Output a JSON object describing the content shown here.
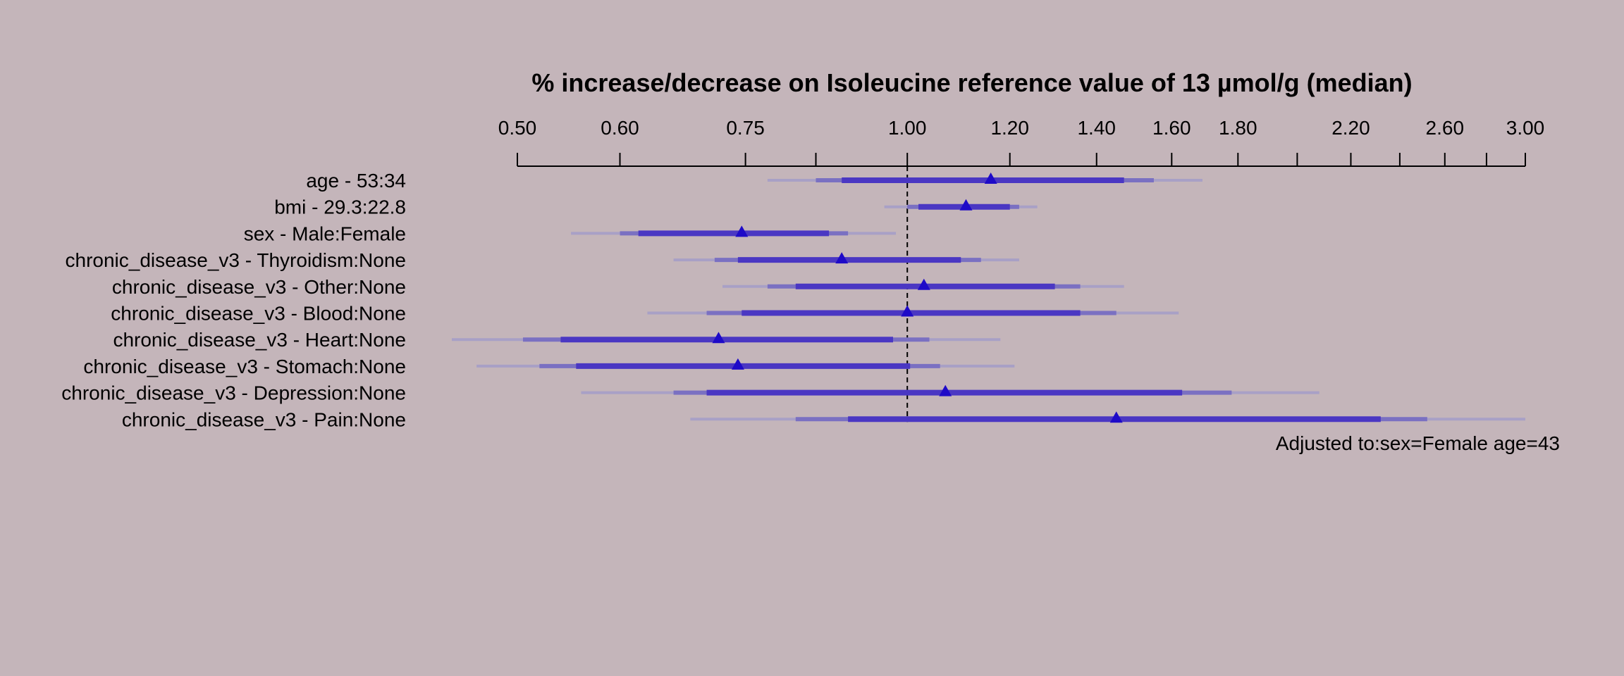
{
  "colors": {
    "background": "#c4b5ba",
    "ci_outer": "#a8a0c6",
    "ci_mid": "#7a70c2",
    "ci_inner": "#4a37c3",
    "point": "#1e0ac8",
    "axis": "#000000"
  },
  "chart_data": {
    "type": "forest",
    "title": "% increase/decrease on Isoleucine reference value of 13 µmol/g (median)",
    "x_scale": "log",
    "xlim": [
      0.5,
      3.0
    ],
    "reference_line": 1.0,
    "ticks": [
      0.5,
      0.6,
      0.75,
      0.85,
      1.0,
      1.2,
      1.4,
      1.6,
      1.8,
      2.0,
      2.2,
      2.4,
      2.6,
      2.8,
      3.0
    ],
    "tick_labels": [
      {
        "value": 0.5,
        "label": "0.50"
      },
      {
        "value": 0.6,
        "label": "0.60"
      },
      {
        "value": 0.75,
        "label": "0.75"
      },
      {
        "value": 1.0,
        "label": "1.00"
      },
      {
        "value": 1.2,
        "label": "1.20"
      },
      {
        "value": 1.4,
        "label": "1.40"
      },
      {
        "value": 1.6,
        "label": "1.60"
      },
      {
        "value": 1.8,
        "label": "1.80"
      },
      {
        "value": 2.2,
        "label": "2.20"
      },
      {
        "value": 2.6,
        "label": "2.60"
      },
      {
        "value": 3.0,
        "label": "3.00"
      }
    ],
    "rows": [
      {
        "label": "age - 53:34",
        "estimate": 1.16,
        "ci_inner": [
          0.89,
          1.47
        ],
        "ci_mid": [
          0.85,
          1.55
        ],
        "ci_outer": [
          0.78,
          1.69
        ]
      },
      {
        "label": "bmi - 29.3:22.8",
        "estimate": 1.11,
        "ci_inner": [
          1.02,
          1.2
        ],
        "ci_mid": [
          1.0,
          1.22
        ],
        "ci_outer": [
          0.96,
          1.26
        ]
      },
      {
        "label": "sex - Male:Female",
        "estimate": 0.745,
        "ci_inner": [
          0.62,
          0.87
        ],
        "ci_mid": [
          0.6,
          0.9
        ],
        "ci_outer": [
          0.55,
          0.98
        ]
      },
      {
        "label": "chronic_disease_v3 - Thyroidism:None",
        "estimate": 0.89,
        "ci_inner": [
          0.74,
          1.1
        ],
        "ci_mid": [
          0.71,
          1.14
        ],
        "ci_outer": [
          0.66,
          1.22
        ]
      },
      {
        "label": "chronic_disease_v3 - Other:None",
        "estimate": 1.03,
        "ci_inner": [
          0.82,
          1.3
        ],
        "ci_mid": [
          0.78,
          1.36
        ],
        "ci_outer": [
          0.72,
          1.47
        ]
      },
      {
        "label": "chronic_disease_v3 - Blood:None",
        "estimate": 1.0,
        "ci_inner": [
          0.745,
          1.36
        ],
        "ci_mid": [
          0.7,
          1.45
        ],
        "ci_outer": [
          0.63,
          1.62
        ]
      },
      {
        "label": "chronic_disease_v3 - Heart:None",
        "estimate": 0.715,
        "ci_inner": [
          0.54,
          0.975
        ],
        "ci_mid": [
          0.505,
          1.04
        ],
        "ci_outer": [
          0.445,
          1.18
        ]
      },
      {
        "label": "chronic_disease_v3 - Stomach:None",
        "estimate": 0.74,
        "ci_inner": [
          0.555,
          1.005
        ],
        "ci_mid": [
          0.52,
          1.06
        ],
        "ci_outer": [
          0.465,
          1.21
        ]
      },
      {
        "label": "chronic_disease_v3 - Depression:None",
        "estimate": 1.07,
        "ci_inner": [
          0.7,
          1.63
        ],
        "ci_mid": [
          0.66,
          1.78
        ],
        "ci_outer": [
          0.56,
          2.08
        ]
      },
      {
        "label": "chronic_disease_v3 - Pain:None",
        "estimate": 1.45,
        "ci_inner": [
          0.9,
          2.32
        ],
        "ci_mid": [
          0.82,
          2.52
        ],
        "ci_outer": [
          0.68,
          3.0
        ]
      }
    ],
    "note": "Adjusted to:sex=Female age=43"
  }
}
